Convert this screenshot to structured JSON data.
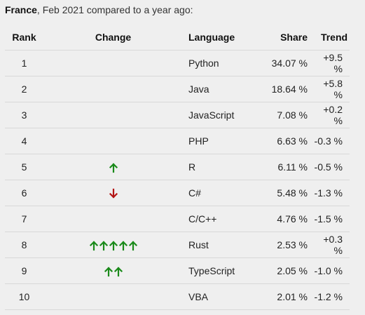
{
  "caption": {
    "country": "France",
    "rest": ", Feb 2021 compared to a year ago:"
  },
  "headers": {
    "rank": "Rank",
    "change": "Change",
    "language": "Language",
    "share": "Share",
    "trend": "Trend"
  },
  "colors": {
    "up": "#1a8a1a",
    "down": "#b31414"
  },
  "rows": [
    {
      "rank": "1",
      "change": {
        "dir": "none",
        "count": 0
      },
      "language": "Python",
      "share": "34.07 %",
      "trend": "+9.5 %"
    },
    {
      "rank": "2",
      "change": {
        "dir": "none",
        "count": 0
      },
      "language": "Java",
      "share": "18.64 %",
      "trend": "+5.8 %"
    },
    {
      "rank": "3",
      "change": {
        "dir": "none",
        "count": 0
      },
      "language": "JavaScript",
      "share": "7.08 %",
      "trend": "+0.2 %"
    },
    {
      "rank": "4",
      "change": {
        "dir": "none",
        "count": 0
      },
      "language": "PHP",
      "share": "6.63 %",
      "trend": "-0.3 %"
    },
    {
      "rank": "5",
      "change": {
        "dir": "up",
        "count": 1
      },
      "language": "R",
      "share": "6.11 %",
      "trend": "-0.5 %"
    },
    {
      "rank": "6",
      "change": {
        "dir": "down",
        "count": 1
      },
      "language": "C#",
      "share": "5.48 %",
      "trend": "-1.3 %"
    },
    {
      "rank": "7",
      "change": {
        "dir": "none",
        "count": 0
      },
      "language": "C/C++",
      "share": "4.76 %",
      "trend": "-1.5 %"
    },
    {
      "rank": "8",
      "change": {
        "dir": "up",
        "count": 5
      },
      "language": "Rust",
      "share": "2.53 %",
      "trend": "+0.3 %"
    },
    {
      "rank": "9",
      "change": {
        "dir": "up",
        "count": 2
      },
      "language": "TypeScript",
      "share": "2.05 %",
      "trend": "-1.0 %"
    },
    {
      "rank": "10",
      "change": {
        "dir": "none",
        "count": 0
      },
      "language": "VBA",
      "share": "2.01 %",
      "trend": "-1.2 %"
    }
  ]
}
